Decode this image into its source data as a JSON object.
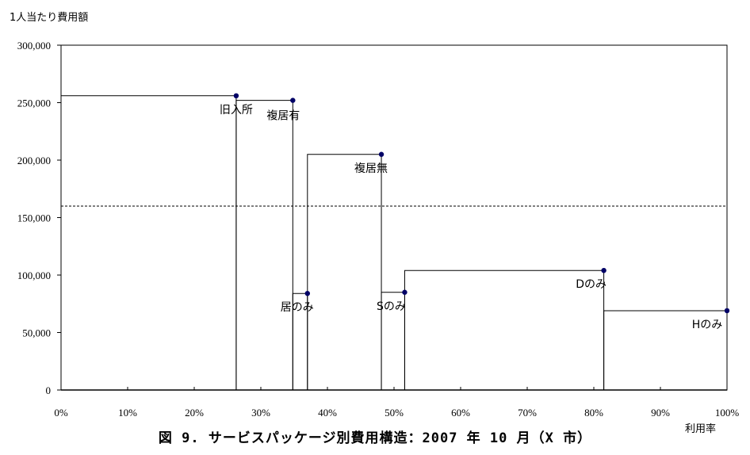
{
  "chart_data": {
    "type": "step",
    "title": "図 9. サービスパッケージ別費用構造：2007 年 10 月（X 市）",
    "ylabel": "1人当たり費用額",
    "xlabel": "利用率",
    "xlim": [
      0,
      100
    ],
    "ylim": [
      0,
      300000
    ],
    "x_ticks": [
      "0%",
      "10%",
      "20%",
      "30%",
      "40%",
      "50%",
      "60%",
      "70%",
      "80%",
      "90%",
      "100%"
    ],
    "y_ticks": [
      "0",
      "50,000",
      "100,000",
      "150,000",
      "200,000",
      "250,000",
      "300,000"
    ],
    "reference_line": {
      "y": 160000,
      "style": "dashed"
    },
    "segments": [
      {
        "label": "旧入所",
        "x_start": 0,
        "x_end": 26.3,
        "value": 256000
      },
      {
        "label": "複居有",
        "x_start": 26.3,
        "x_end": 34.8,
        "value": 252000
      },
      {
        "label": "居のみ",
        "x_start": 34.8,
        "x_end": 37.0,
        "value": 84000
      },
      {
        "label": "複居無",
        "x_start": 37.0,
        "x_end": 48.1,
        "value": 205000
      },
      {
        "label": "Sのみ",
        "x_start": 48.1,
        "x_end": 51.6,
        "value": 85000
      },
      {
        "label": "Dのみ",
        "x_start": 51.6,
        "x_end": 81.5,
        "value": 104000
      },
      {
        "label": "Hのみ",
        "x_start": 81.5,
        "x_end": 100,
        "value": 69000
      }
    ],
    "colors": {
      "marker": "#000066",
      "line": "#000000"
    }
  }
}
